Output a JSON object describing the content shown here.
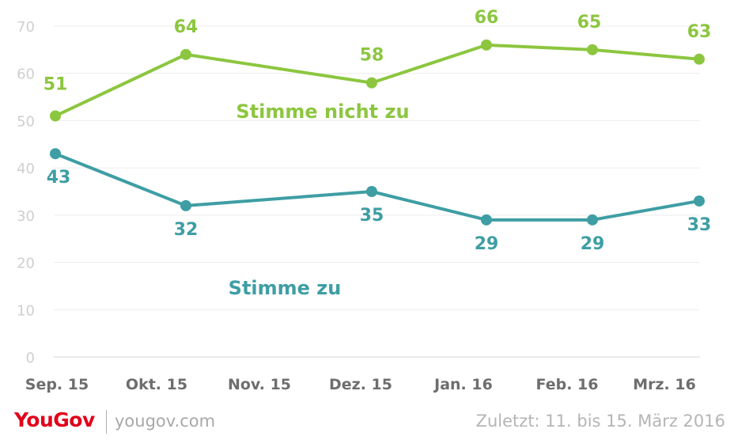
{
  "chart_data": {
    "type": "line",
    "categories": [
      "Sep. 15",
      "Okt. 15",
      "Nov. 15",
      "Dez. 15",
      "Jan. 16",
      "Feb. 16",
      "Mrz. 16"
    ],
    "x": [
      "Sep. 15",
      "Okt. 15",
      "Dez. 15",
      "Jan. 16",
      "Feb. 16",
      "Mrz. 16"
    ],
    "series": [
      {
        "name": "Stimme nicht zu",
        "color": "#8cc63f",
        "values": [
          51,
          64,
          58,
          66,
          65,
          63
        ]
      },
      {
        "name": "Stimme zu",
        "color": "#3e9ea4",
        "values": [
          43,
          32,
          35,
          29,
          29,
          33
        ]
      }
    ],
    "ylim": [
      0,
      70
    ],
    "yticks": [
      0,
      10,
      20,
      30,
      40,
      50,
      60,
      70
    ],
    "grid": true,
    "legend": "inline labels",
    "title": "",
    "xlabel": "",
    "ylabel": ""
  },
  "footer": {
    "brand": "YouGov",
    "site": "yougov.com",
    "updated": "Zuletzt: 11. bis 15. März 2016"
  }
}
